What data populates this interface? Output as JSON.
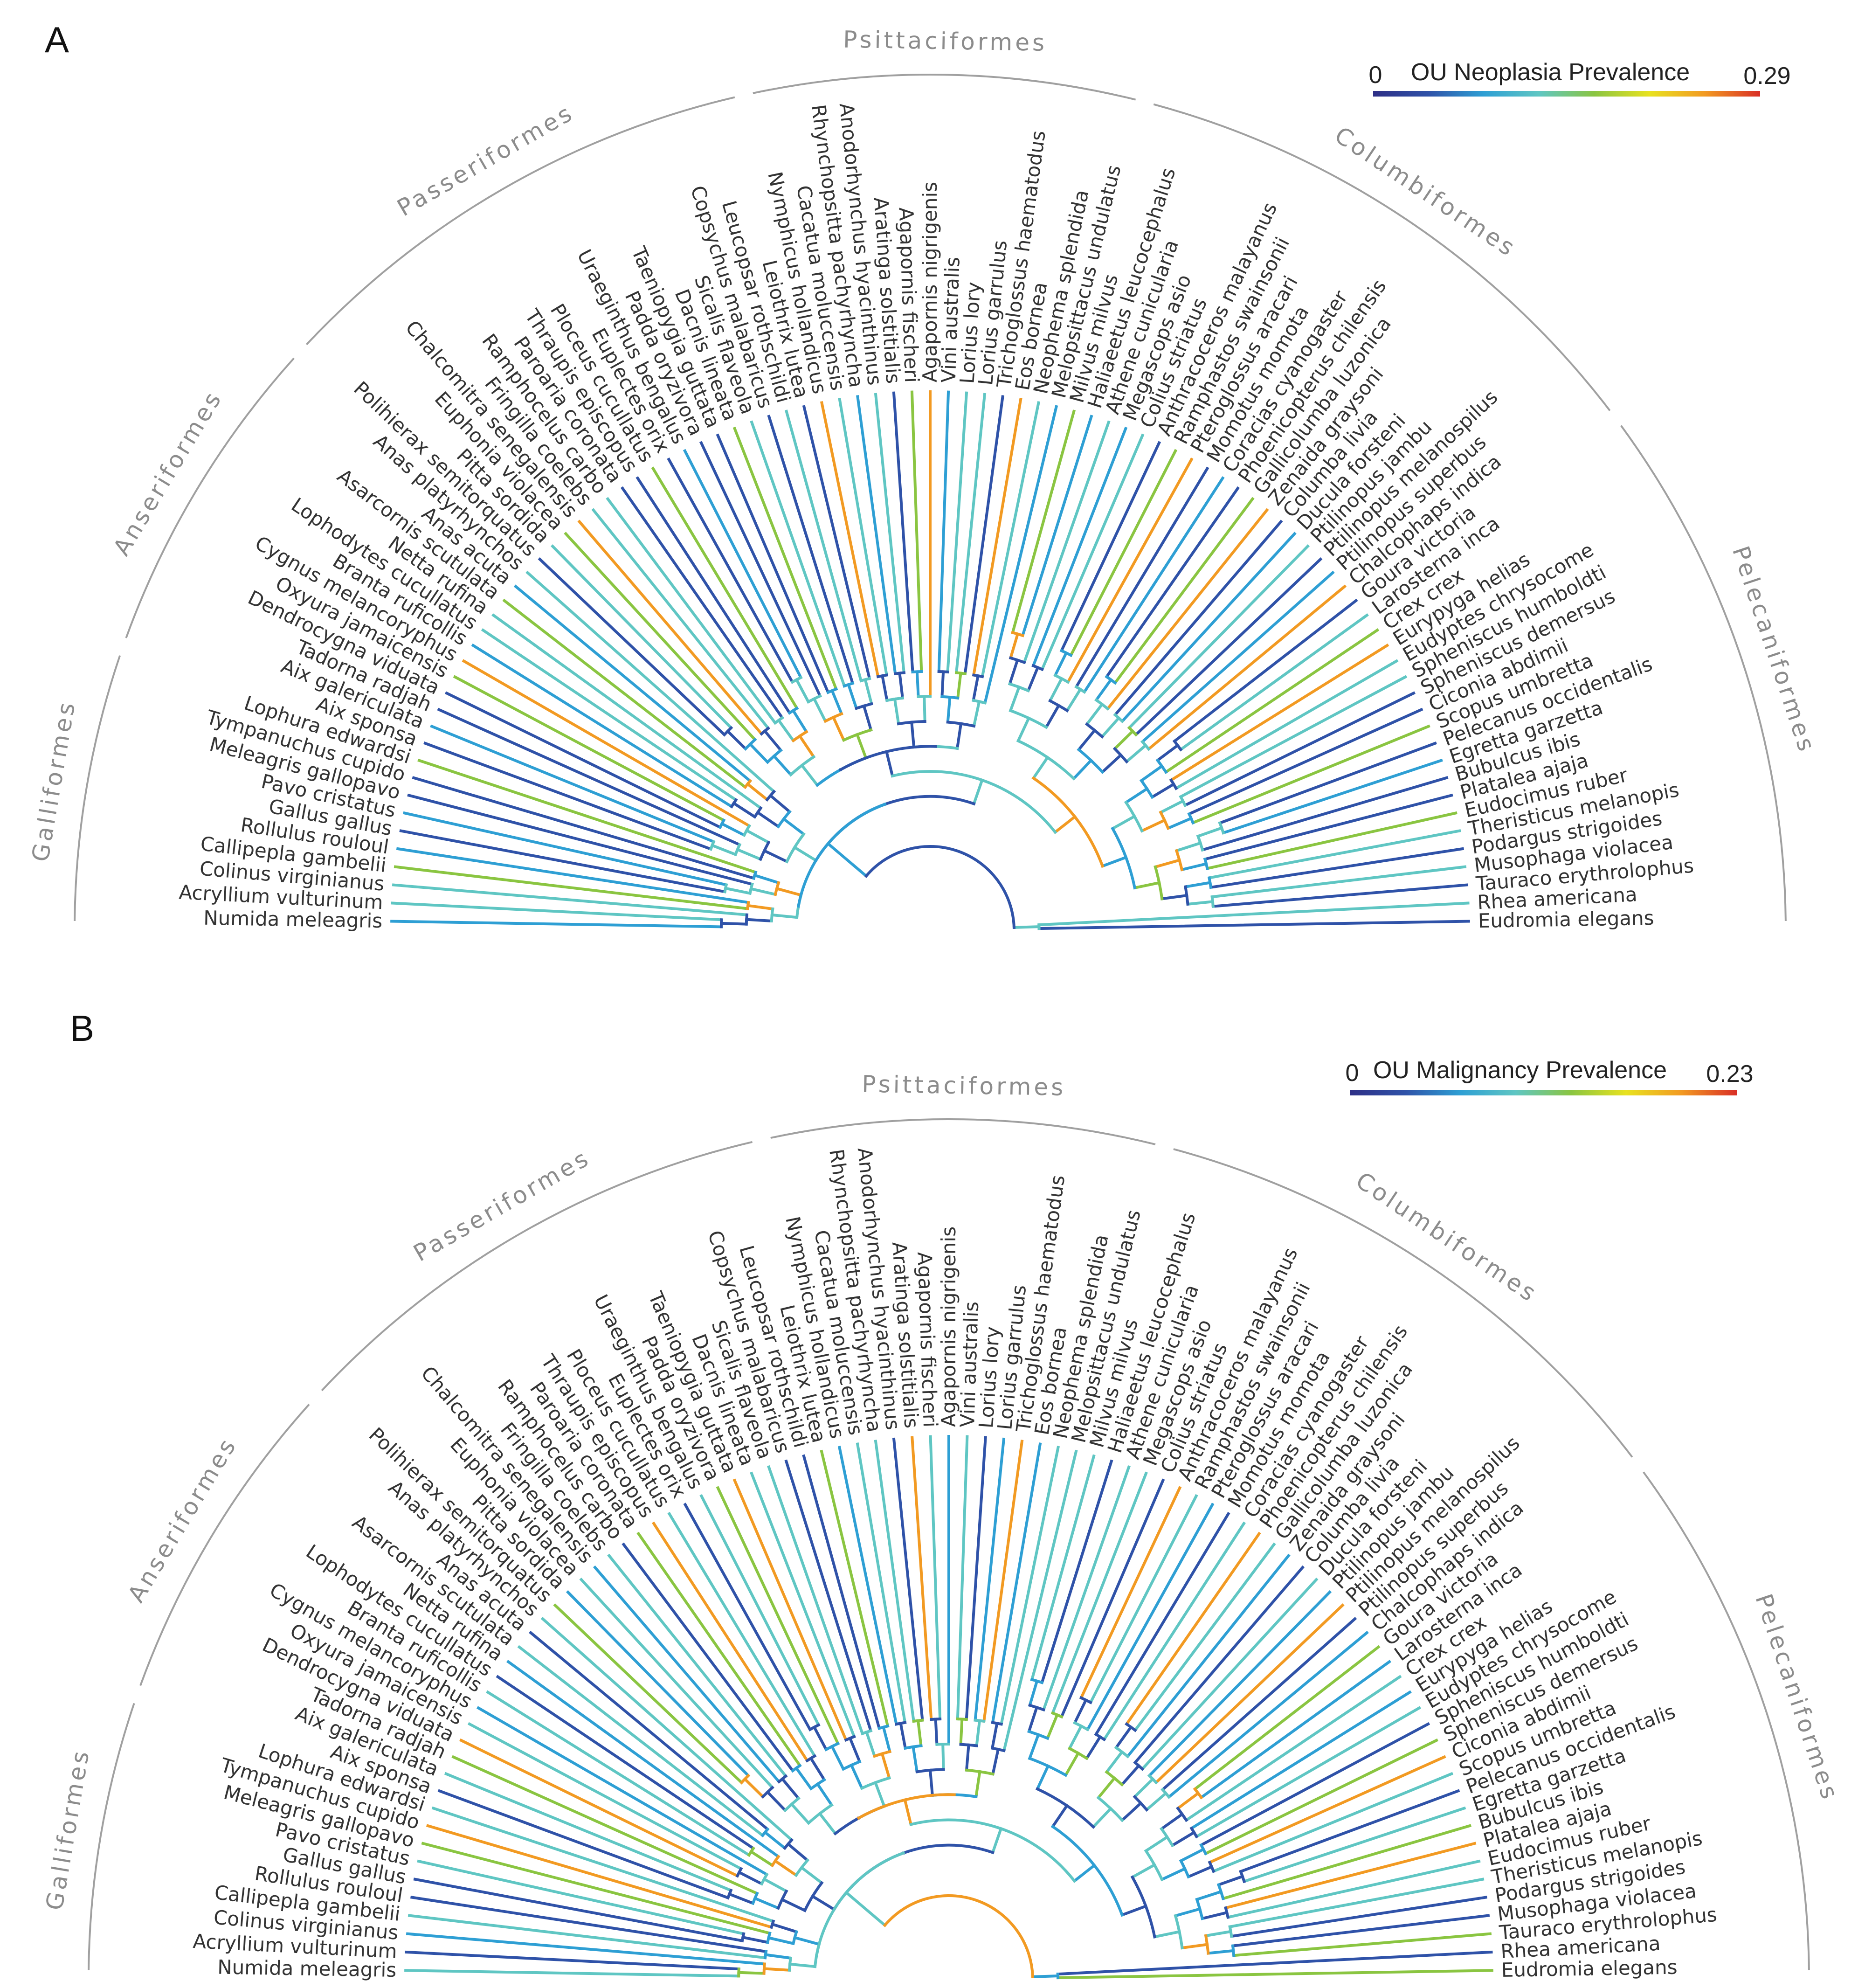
{
  "panels": [
    {
      "letter": "A",
      "legend": {
        "min_label": "0",
        "title": "OU Neoplasia Prevalence",
        "max_label": "0.29"
      }
    },
    {
      "letter": "B",
      "legend": {
        "min_label": "0",
        "title": "OU Malignancy Prevalence",
        "max_label": "0.23"
      }
    }
  ],
  "clades": [
    "Galliformes",
    "Anseriformes",
    "Passeriformes",
    "Psittaciformes",
    "Columbiformes",
    "Pelecaniformes"
  ],
  "species": [
    "Numida meleagris",
    "Acryllium vulturinum",
    "Colinus virginianus",
    "Callipepla gambelii",
    "Rollulus rouloul",
    "Gallus gallus",
    "Pavo cristatus",
    "Meleagris gallopavo",
    "Tympanuchus cupido",
    "Lophura edwardsi",
    "Aix sponsa",
    "Aix galericulata",
    "Tadorna radjah",
    "Dendrocygna viduata",
    "Oxyura jamaicensis",
    "Cygnus melancoryphus",
    "Branta ruficollis",
    "Lophodytes cucullatus",
    "Netta rufina",
    "Asarcornis scutulata",
    "Anas acuta",
    "Anas platyrhynchos",
    "Polihierax semitorquatus",
    "Pitta sordida",
    "Euphonia violacea",
    "Chalcomitra senegalensis",
    "Fringilla coelebs",
    "Ramphocelus carbo",
    "Paroaria coronata",
    "Thraupis episcopus",
    "Ploceus cucullatus",
    "Euplectes orix",
    "Uraeginthus bengalus",
    "Padda oryzivora",
    "Taeniopygia guttata",
    "Dacnis lineata",
    "Sicalis flaveola",
    "Copsychus malabaricus",
    "Leucopsar rothschildi",
    "Leiothrix lutea",
    "Nymphicus hollandicus",
    "Cacatua moluccensis",
    "Rhynchopsitta pachyrhyncha",
    "Anodorhynchus hyacinthinus",
    "Aratinga solstitialis",
    "Agapornis fischeri",
    "Agapornis nigrigenis",
    "Vini australis",
    "Lorius lory",
    "Lorius garrulus",
    "Trichoglossus haematodus",
    "Eos bornea",
    "Neophema splendida",
    "Melopsittacus undulatus",
    "Milvus milvus",
    "Haliaeetus leucocephalus",
    "Athene cunicularia",
    "Megascops asio",
    "Colius striatus",
    "Anthracoceros malayanus",
    "Ramphastos swainsonii",
    "Pteroglossus aracari",
    "Momotus momota",
    "Coracias cyanogaster",
    "Phoenicopterus chilensis",
    "Gallicolumba luzonica",
    "Zenaida graysoni",
    "Columba livia",
    "Ducula forsteni",
    "Ptilinopus jambu",
    "Ptilinopus melanospilus",
    "Ptilinopus superbus",
    "Chalcophaps indica",
    "Goura victoria",
    "Larosterna inca",
    "Crex crex",
    "Eurypyga helias",
    "Eudyptes chrysocome",
    "Spheniscus humboldti",
    "Spheniscus demersus",
    "Ciconia abdimii",
    "Scopus umbretta",
    "Pelecanus occidentalis",
    "Egretta garzetta",
    "Bubulcus ibis",
    "Platalea ajaja",
    "Eudocimus ruber",
    "Theristicus melanopis",
    "Podargus strigoides",
    "Musophaga violacea",
    "Tauraco erythrolophus",
    "Rhea americana",
    "Eudromia elegans"
  ],
  "colors": {
    "gradient": [
      "#2e2f86",
      "#2f52a8",
      "#2e9fd4",
      "#5fc6c3",
      "#8ac541",
      "#e8e220",
      "#f29a22",
      "#d92f26"
    ],
    "text": "#333333",
    "bracket": "#a0a0a0"
  }
}
